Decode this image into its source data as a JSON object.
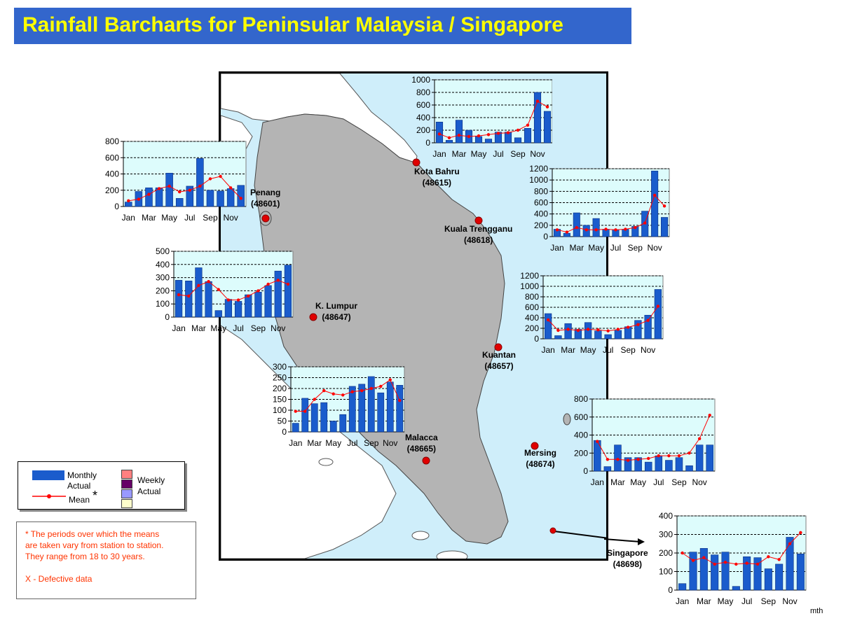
{
  "title": "Rainfall Barcharts for Peninsular Malaysia / Singapore",
  "stations": [
    {
      "key": "penang",
      "name": "Penang",
      "code": "(48601)"
    },
    {
      "key": "kotabahru",
      "name": "Kota Bahru",
      "code": "(48615)"
    },
    {
      "key": "kualatrengganu",
      "name": "Kuala Trengganu",
      "code": "(48618)"
    },
    {
      "key": "klumpur",
      "name": "K. Lumpur",
      "code": "(48647)"
    },
    {
      "key": "kuantan",
      "name": "Kuantan",
      "code": "(48657)"
    },
    {
      "key": "malacca",
      "name": "Malacca",
      "code": "(48665)"
    },
    {
      "key": "mersing",
      "name": "Mersing",
      "code": "(48674)"
    },
    {
      "key": "singapore",
      "name": "Singapore",
      "code": "(48698)"
    }
  ],
  "legend": {
    "monthly_actual": "Monthly Actual",
    "mean": "Mean",
    "asterisk": "*",
    "weekly_actual": "Weekly Actual",
    "weekly_colors": [
      "#ff8080",
      "#660066",
      "#9999ff",
      "#ffffcc"
    ]
  },
  "footnote": {
    "line1": "* The periods over which the means",
    "line2": "are taken vary from station to station.",
    "line3": "They range from 18 to 30 years.",
    "line4": "X - Defective data"
  },
  "mth_label": "mth",
  "colors": {
    "bar": "#1a5ccc",
    "mean": "#ff0000",
    "plot_bg": "#ddfcfc",
    "sea": "#cfeefa",
    "land": "#b4b4b4",
    "title_bg": "#3366cc",
    "title_text": "#ffff00"
  },
  "chart_data": [
    {
      "id": "kotabahru",
      "station": "Kota Bahru",
      "type": "bar",
      "ylim": [
        0,
        1000
      ],
      "yticks": [
        0,
        200,
        400,
        600,
        800,
        1000
      ],
      "xticklabels": [
        "Jan",
        "Mar",
        "May",
        "Jul",
        "Sep",
        "Nov"
      ],
      "categories": [
        "Jan",
        "Feb",
        "Mar",
        "Apr",
        "May",
        "Jun",
        "Jul",
        "Aug",
        "Sep",
        "Oct",
        "Nov",
        "Dec"
      ],
      "series": [
        {
          "name": "Monthly Actual",
          "values": [
            330,
            40,
            360,
            200,
            100,
            60,
            170,
            170,
            80,
            230,
            800,
            500
          ]
        },
        {
          "name": "Mean",
          "values": [
            140,
            80,
            120,
            100,
            110,
            130,
            150,
            160,
            200,
            280,
            660,
            570
          ]
        }
      ]
    },
    {
      "id": "penang",
      "station": "Penang",
      "type": "bar",
      "ylim": [
        0,
        800
      ],
      "yticks": [
        0,
        200,
        400,
        600,
        800
      ],
      "xticklabels": [
        "Jan",
        "Mar",
        "May",
        "Jul",
        "Sep",
        "Nov"
      ],
      "categories": [
        "Jan",
        "Feb",
        "Mar",
        "Apr",
        "May",
        "Jun",
        "Jul",
        "Aug",
        "Sep",
        "Oct",
        "Nov",
        "Dec"
      ],
      "series": [
        {
          "name": "Monthly Actual",
          "values": [
            55,
            185,
            230,
            230,
            410,
            100,
            250,
            590,
            200,
            190,
            220,
            260
          ]
        },
        {
          "name": "Mean",
          "values": [
            70,
            90,
            150,
            220,
            250,
            180,
            200,
            250,
            340,
            370,
            230,
            100
          ]
        }
      ]
    },
    {
      "id": "kualatrengganu",
      "station": "Kuala Trengganu",
      "type": "bar",
      "ylim": [
        0,
        1200
      ],
      "yticks": [
        0,
        200,
        400,
        600,
        800,
        1000,
        1200
      ],
      "xticklabels": [
        "Jan",
        "Mar",
        "May",
        "Jul",
        "Sep",
        "Nov"
      ],
      "categories": [
        "Jan",
        "Feb",
        "Mar",
        "Apr",
        "May",
        "Jun",
        "Jul",
        "Aug",
        "Sep",
        "Oct",
        "Nov",
        "Dec"
      ],
      "series": [
        {
          "name": "Monthly Actual",
          "values": [
            130,
            60,
            420,
            200,
            320,
            130,
            120,
            130,
            180,
            450,
            1160,
            340
          ]
        },
        {
          "name": "Mean",
          "values": [
            120,
            80,
            160,
            120,
            120,
            130,
            120,
            130,
            160,
            240,
            730,
            540
          ]
        }
      ]
    },
    {
      "id": "klumpur",
      "station": "K. Lumpur",
      "type": "bar",
      "ylim": [
        0,
        500
      ],
      "yticks": [
        0,
        100,
        200,
        300,
        400,
        500
      ],
      "xticklabels": [
        "Jan",
        "Mar",
        "May",
        "Jul",
        "Sep",
        "Nov"
      ],
      "categories": [
        "Jan",
        "Feb",
        "Mar",
        "Apr",
        "May",
        "Jun",
        "Jul",
        "Aug",
        "Sep",
        "Oct",
        "Nov",
        "Dec"
      ],
      "series": [
        {
          "name": "Monthly Actual",
          "values": [
            280,
            275,
            375,
            270,
            50,
            135,
            120,
            170,
            190,
            240,
            350,
            395
          ]
        },
        {
          "name": "Mean",
          "values": [
            170,
            160,
            240,
            270,
            210,
            130,
            130,
            160,
            200,
            250,
            280,
            250
          ]
        }
      ]
    },
    {
      "id": "kuantan",
      "station": "Kuantan",
      "type": "bar",
      "ylim": [
        0,
        1200
      ],
      "yticks": [
        0,
        200,
        400,
        600,
        800,
        1000,
        1200
      ],
      "xticklabels": [
        "Jan",
        "Mar",
        "May",
        "Jul",
        "Sep",
        "Nov"
      ],
      "categories": [
        "Jan",
        "Feb",
        "Mar",
        "Apr",
        "May",
        "Jun",
        "Jul",
        "Aug",
        "Sep",
        "Oct",
        "Nov",
        "Dec"
      ],
      "series": [
        {
          "name": "Monthly Actual",
          "values": [
            480,
            60,
            290,
            180,
            310,
            150,
            80,
            160,
            230,
            350,
            450,
            940
          ]
        },
        {
          "name": "Mean",
          "values": [
            360,
            160,
            180,
            160,
            180,
            170,
            150,
            180,
            220,
            270,
            350,
            620
          ]
        }
      ]
    },
    {
      "id": "malacca",
      "station": "Malacca",
      "type": "bar",
      "ylim": [
        0,
        300
      ],
      "yticks": [
        0,
        50,
        100,
        150,
        200,
        250,
        300
      ],
      "xticklabels": [
        "Jan",
        "Mar",
        "May",
        "Jul",
        "Sep",
        "Nov"
      ],
      "categories": [
        "Jan",
        "Feb",
        "Mar",
        "Apr",
        "May",
        "Jun",
        "Jul",
        "Aug",
        "Sep",
        "Oct",
        "Nov",
        "Dec"
      ],
      "series": [
        {
          "name": "Monthly Actual",
          "values": [
            40,
            155,
            130,
            135,
            50,
            80,
            210,
            220,
            255,
            180,
            230,
            215
          ]
        },
        {
          "name": "Mean",
          "values": [
            95,
            95,
            150,
            190,
            175,
            170,
            185,
            190,
            200,
            210,
            240,
            145
          ]
        }
      ]
    },
    {
      "id": "mersing",
      "station": "Mersing",
      "type": "bar",
      "ylim": [
        0,
        800
      ],
      "yticks": [
        0,
        200,
        400,
        600,
        800
      ],
      "xticklabels": [
        "Jan",
        "Mar",
        "May",
        "Jul",
        "Sep",
        "Nov"
      ],
      "categories": [
        "Jan",
        "Feb",
        "Mar",
        "Apr",
        "May",
        "Jun",
        "Jul",
        "Aug",
        "Sep",
        "Oct",
        "Nov",
        "Dec"
      ],
      "series": [
        {
          "name": "Monthly Actual",
          "values": [
            340,
            50,
            290,
            150,
            150,
            100,
            170,
            120,
            150,
            60,
            290,
            290
          ]
        },
        {
          "name": "Mean",
          "values": [
            330,
            130,
            130,
            120,
            130,
            140,
            170,
            170,
            170,
            200,
            360,
            620
          ]
        }
      ]
    },
    {
      "id": "singapore",
      "station": "Singapore",
      "type": "bar",
      "ylim": [
        0,
        400
      ],
      "yticks": [
        0,
        100,
        200,
        300,
        400
      ],
      "xticklabels": [
        "Jan",
        "Mar",
        "May",
        "Jul",
        "Sep",
        "Nov"
      ],
      "categories": [
        "Jan",
        "Feb",
        "Mar",
        "Apr",
        "May",
        "Jun",
        "Jul",
        "Aug",
        "Sep",
        "Oct",
        "Nov",
        "Dec"
      ],
      "series": [
        {
          "name": "Monthly Actual",
          "values": [
            35,
            205,
            225,
            190,
            205,
            20,
            180,
            175,
            115,
            140,
            285,
            195
          ]
        },
        {
          "name": "Mean",
          "values": [
            200,
            160,
            175,
            140,
            150,
            140,
            145,
            140,
            180,
            165,
            250,
            310
          ]
        }
      ]
    }
  ]
}
